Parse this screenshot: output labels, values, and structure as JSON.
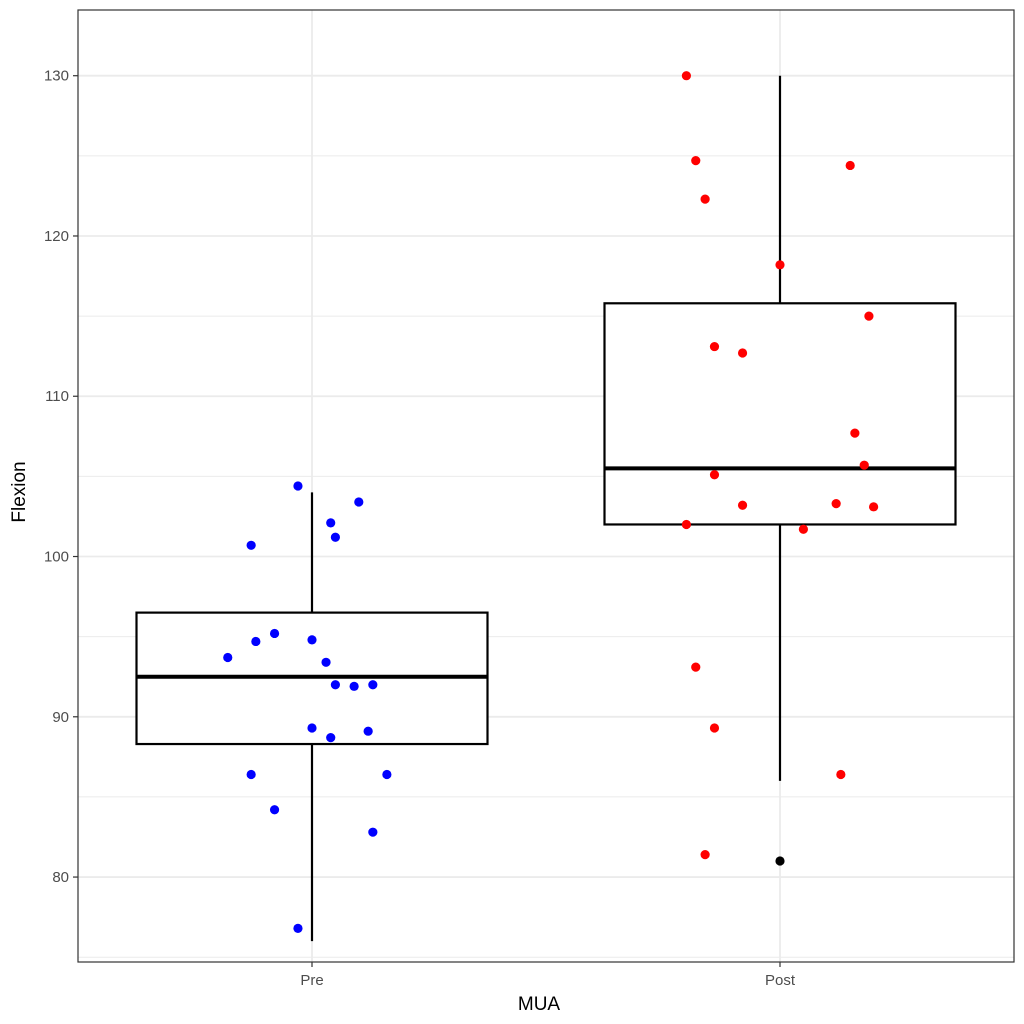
{
  "chart_data": {
    "type": "box",
    "xlabel": "MUA",
    "ylabel": "Flexion",
    "categories": [
      "Pre",
      "Post"
    ],
    "ylim": [
      74.7,
      134.1
    ],
    "y_ticks": [
      80,
      90,
      100,
      110,
      120,
      130
    ],
    "grid": true,
    "legend": "none",
    "boxes": [
      {
        "category": "Pre",
        "q1": 88.3,
        "median": 92.5,
        "q3": 96.5,
        "whisker_low": 76.0,
        "whisker_high": 104.0,
        "outliers": []
      },
      {
        "category": "Post",
        "q1": 102.0,
        "median": 105.5,
        "q3": 115.8,
        "whisker_low": 86.0,
        "whisker_high": 130.0,
        "outliers": [
          81.0
        ]
      }
    ],
    "points": [
      {
        "category": "Pre",
        "jitter": [
          -0.03,
          -0.03,
          -0.13,
          -0.08,
          0.1,
          0.04,
          0.05,
          0.13,
          0.12,
          0.13,
          0.0,
          0.03,
          0.05,
          -0.0,
          0.04,
          -0.08,
          -0.18,
          -0.12,
          -0.13,
          0.09,
          0.16
        ],
        "values": [
          104.4,
          76.8,
          100.7,
          95.2,
          103.4,
          102.1,
          101.2,
          92.0,
          89.1,
          82.8,
          94.8,
          93.4,
          92.0,
          89.3,
          88.7,
          84.2,
          93.7,
          94.7,
          86.4,
          91.9,
          86.4
        ]
      },
      {
        "category": "Post",
        "jitter": [
          -0.2,
          -0.18,
          -0.16,
          -0.14,
          -0.08,
          0.0,
          0.15,
          0.19,
          0.16,
          0.12,
          0.18,
          -0.14,
          -0.08,
          0.05,
          0.2,
          -0.2,
          -0.18,
          -0.14,
          0.13,
          -0.16
        ],
        "values": [
          130.0,
          124.7,
          122.3,
          113.1,
          112.7,
          118.2,
          124.4,
          115.0,
          107.7,
          103.3,
          105.7,
          105.1,
          103.2,
          101.7,
          103.1,
          102.0,
          93.1,
          89.3,
          86.4,
          81.4
        ]
      }
    ],
    "colors": {
      "Pre": "#0000ff",
      "Post": "#ff0000",
      "outlier": "#000000",
      "box": "#000000",
      "grid": "#ebebeb",
      "panel_border": "#333333"
    }
  }
}
